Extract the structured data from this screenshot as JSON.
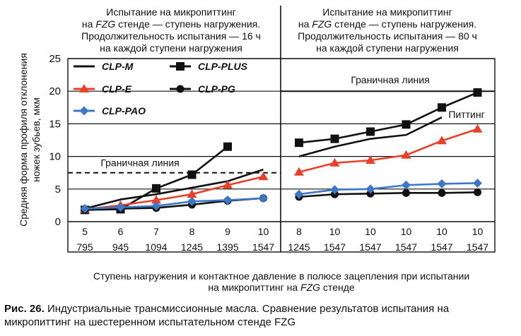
{
  "chart_data": {
    "type": "line",
    "ylabel": "Средняя форма профиля отклонения ножек зубьев, мкм",
    "xlabel": "Ступень нагружения и контактное давление в полюсе зацепления при испытании на микропиттинг на FZG стенде",
    "ylim": [
      0,
      25
    ],
    "yticks": [
      "0",
      "5",
      "10",
      "15",
      "20",
      "25"
    ],
    "grid": "horizontal",
    "legend_position": "top-left",
    "x_stage_labels": [
      "5",
      "6",
      "7",
      "8",
      "9",
      "10",
      "8",
      "10",
      "10",
      "10",
      "10",
      "10"
    ],
    "x_pressure_labels": [
      "795",
      "945",
      "1094",
      "1245",
      "1395",
      "1547",
      "1245",
      "1547",
      "1547",
      "1547",
      "1547",
      "1547"
    ],
    "panels": [
      {
        "title": "Испытание на микропиттинг на FZG стенде — ступень нагружения. Продолжительность испытания — 16 ч на каждой ступени нагружения",
        "title_lines": [
          "Испытание на микропиттинг",
          "на FZG стенде — ступень нагружения.",
          "Продолжительность испытания — 16 ч",
          "на каждой ступени нагружения"
        ]
      },
      {
        "title": "Испытание на микропиттинг на FZG стенде — ступень нагружения. Продолжительность испытания — 80 ч на каждой ступени нагружения",
        "title_lines": [
          "Испытание на микропиттинг",
          "на FZG стенде — ступень нагружения.",
          "Продолжительность испытания — 80 ч",
          "на каждой ступени нагружения"
        ]
      }
    ],
    "annotations": {
      "boundary_line_left": {
        "label": "Граничная линия",
        "y": 7.5
      },
      "boundary_line_right": {
        "label": "Граничная линия",
        "y": 20
      },
      "pitting": {
        "label": "Питтинг"
      }
    },
    "series": [
      {
        "name": "CLP-M",
        "color": "#111111",
        "marker": "none",
        "x": [
          0,
          1,
          2,
          3,
          4,
          5,
          6,
          7,
          8,
          9,
          10
        ],
        "values": [
          2.0,
          3.4,
          4.2,
          5.2,
          6.2,
          8.0,
          10.0,
          11.5,
          12.7,
          13.3,
          16.0
        ]
      },
      {
        "name": "CLP-PLUS",
        "color": "#111111",
        "marker": "square",
        "x": [
          0,
          1,
          2,
          3,
          4,
          6,
          7,
          8,
          9,
          10,
          11
        ],
        "values": [
          1.8,
          1.9,
          5.1,
          7.2,
          11.5,
          12.1,
          12.7,
          13.8,
          14.9,
          17.5,
          19.8
        ]
      },
      {
        "name": "CLP-E",
        "color": "#e8402a",
        "marker": "triangle",
        "x": [
          0,
          1,
          2,
          3,
          4,
          5,
          6,
          7,
          8,
          9,
          10,
          11
        ],
        "values": [
          1.9,
          2.5,
          3.3,
          4.2,
          5.6,
          6.9,
          7.6,
          9.0,
          9.4,
          10.2,
          12.4,
          14.2
        ]
      },
      {
        "name": "CLP-PG",
        "color": "#111111",
        "marker": "circle",
        "x": [
          0,
          1,
          2,
          3,
          4,
          5,
          6,
          7,
          8,
          9,
          10,
          11
        ],
        "values": [
          1.9,
          2.0,
          2.1,
          2.6,
          3.2,
          3.6,
          3.8,
          4.2,
          4.3,
          4.4,
          4.4,
          4.5
        ]
      },
      {
        "name": "CLP-PAO",
        "color": "#3d78c8",
        "marker": "diamond",
        "x": [
          0,
          1,
          2,
          3,
          4,
          5,
          6,
          7,
          8,
          9,
          10,
          11
        ],
        "values": [
          2.0,
          2.2,
          2.4,
          3.1,
          3.3,
          3.6,
          4.2,
          4.9,
          5.0,
          5.6,
          5.8,
          5.9
        ]
      }
    ]
  },
  "caption": {
    "label": "Рис. 26.",
    "text": "Индустриальные трансмиссионные масла. Сравнение результатов испытания на микропиттинг на шестеренном испытательном стенде FZG"
  }
}
